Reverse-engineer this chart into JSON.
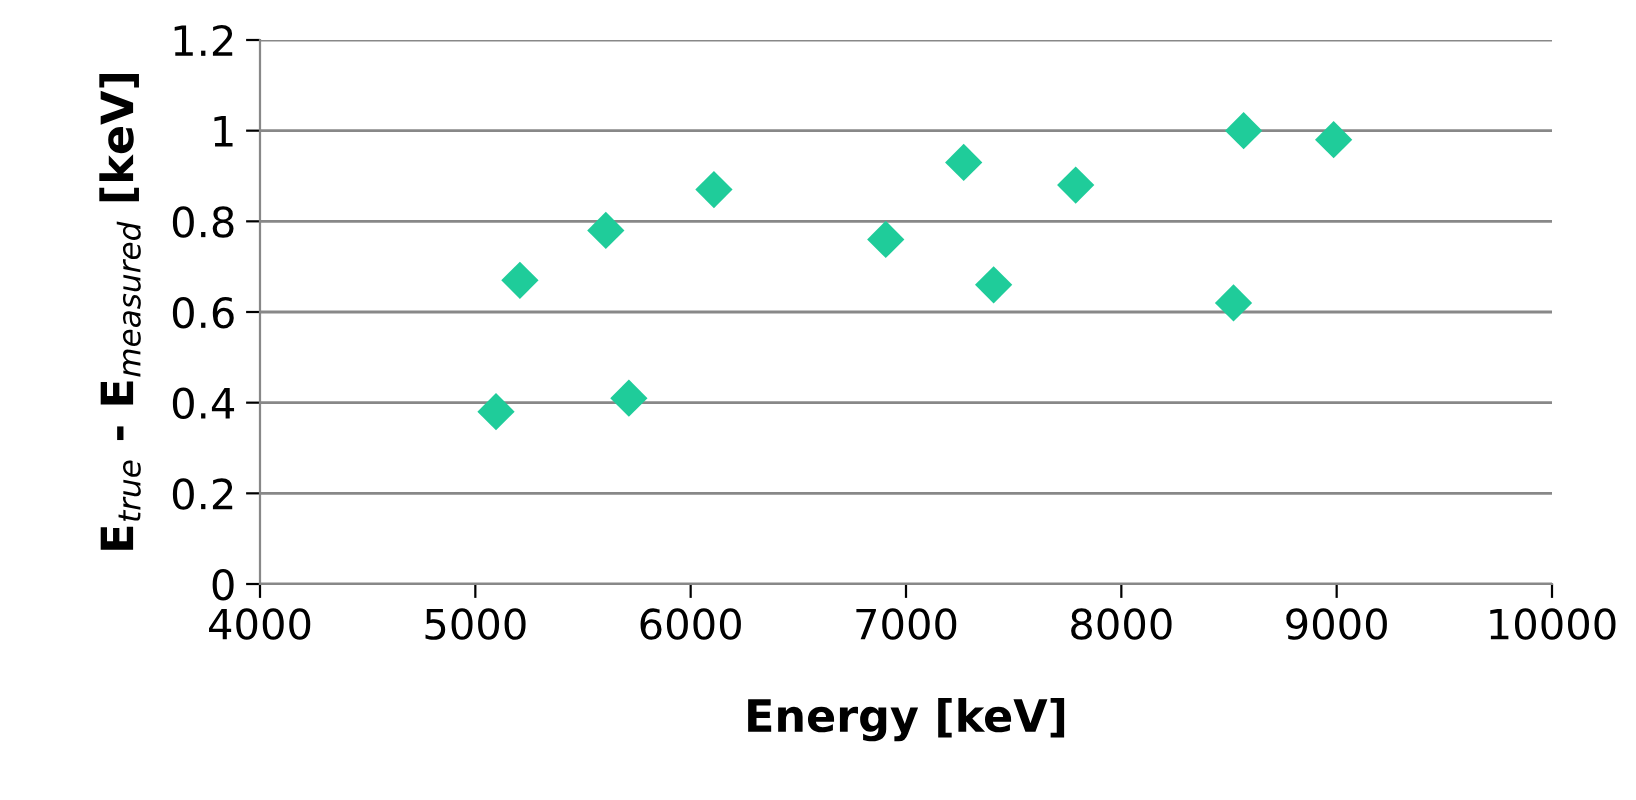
{
  "chart_data": {
    "type": "scatter",
    "xlabel": "Energy [keV]",
    "ylabel": "E$_{true}$ - E$_{measured}$ [keV]",
    "x": [
      5096,
      5207,
      5606,
      5713,
      6108,
      6906,
      7268,
      7407,
      7788,
      8521,
      8568,
      8986
    ],
    "series": [
      {
        "color": "#1fcc9a",
        "values": [
          0.38,
          0.67,
          0.78,
          0.41,
          0.87,
          0.76,
          0.93,
          0.66,
          0.88,
          0.62,
          1.0,
          0.98
        ]
      }
    ],
    "xlim": [
      4000,
      10000
    ],
    "xticks": [
      4000,
      5000,
      6000,
      7000,
      8000,
      9000,
      10000
    ],
    "ylim": [
      0,
      1.2
    ],
    "yticks": [
      {
        "value": 0,
        "label": "0"
      },
      {
        "value": 0.2,
        "label": "0.2"
      },
      {
        "value": 0.4,
        "label": "0.4"
      },
      {
        "value": 0.6,
        "label": "0.6"
      },
      {
        "value": 0.8,
        "label": "0.8"
      },
      {
        "value": 1,
        "label": "1"
      },
      {
        "value": 1.2,
        "label": "1.2"
      }
    ],
    "grid": "y",
    "marker": "diamond"
  }
}
